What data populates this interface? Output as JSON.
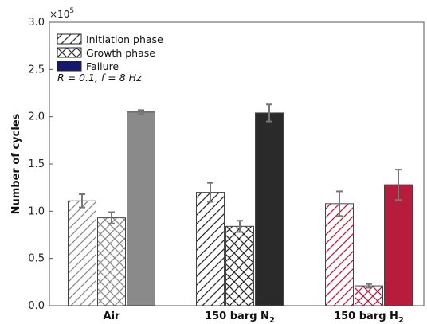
{
  "chart_data": {
    "type": "bar",
    "categories": [
      "Air",
      "150 barg N",
      "150 barg H"
    ],
    "category_subscripts": [
      "",
      "2",
      "2"
    ],
    "ylabel": "Number of cycles",
    "y_multiplier": "×10",
    "y_multiplier_exp": "5",
    "ylim": [
      0,
      3.0
    ],
    "yticks": [
      "0.0",
      "0.5",
      "1.0",
      "1.5",
      "2.0",
      "2.5",
      "3.0"
    ],
    "legend_position": "top-left",
    "annotation": "R = 0.1, f = 8 Hz",
    "series": [
      {
        "name": "Initiation phase",
        "pattern": "diagonal-hatch",
        "values": [
          1.11,
          1.2,
          1.08
        ],
        "errors": [
          0.07,
          0.1,
          0.13
        ]
      },
      {
        "name": "Growth phase",
        "pattern": "cross-hatch",
        "values": [
          0.93,
          0.84,
          0.21
        ],
        "errors": [
          0.06,
          0.06,
          0.02
        ]
      },
      {
        "name": "Failure",
        "pattern": "solid",
        "values": [
          2.05,
          2.04,
          1.28
        ],
        "errors": [
          0.02,
          0.09,
          0.16
        ]
      }
    ],
    "category_colors": [
      "#8a8a8a",
      "#2a2a2a",
      "#b81c3c"
    ],
    "legend_color": "#15196e"
  }
}
